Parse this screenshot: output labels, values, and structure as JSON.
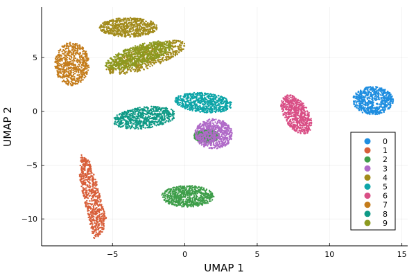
{
  "chart_data": {
    "type": "scatter",
    "title": "",
    "xlabel": "UMAP 1",
    "ylabel": "UMAP 2",
    "xlim": [
      -9.9,
      15.4
    ],
    "ylim": [
      -12.5,
      9.7
    ],
    "xticks": [
      -5,
      0,
      5,
      10,
      15
    ],
    "yticks": [
      -10,
      -5,
      0,
      5
    ],
    "xtick_labels": [
      "−5",
      "0",
      "5",
      "10",
      "15"
    ],
    "ytick_labels": [
      "−10",
      "−5",
      "0",
      "5"
    ],
    "grid": true,
    "legend_position": "bottom-right",
    "series": [
      {
        "name": "0",
        "color": "#1f8ee0",
        "clusters": [
          {
            "shape": "ellipse",
            "cx": 13.0,
            "cy": 1.0,
            "rx": 1.4,
            "ry": 1.3
          }
        ]
      },
      {
        "name": "1",
        "color": "#d85f3a",
        "clusters": [
          {
            "shape": "polygon",
            "points": [
              [
                -7.2,
                -4.0
              ],
              [
                -6.6,
                -4.6
              ],
              [
                -6.1,
                -6.5
              ],
              [
                -5.7,
                -8.8
              ],
              [
                -5.4,
                -10.0
              ],
              [
                -5.7,
                -11.4
              ],
              [
                -6.3,
                -11.9
              ],
              [
                -6.6,
                -10.2
              ],
              [
                -7.0,
                -8.0
              ],
              [
                -7.3,
                -6.0
              ]
            ]
          }
        ]
      },
      {
        "name": "2",
        "color": "#3e9e4a",
        "clusters": [
          {
            "shape": "ellipse",
            "cx": 0.2,
            "cy": -7.9,
            "rx": 1.8,
            "ry": 1.0
          },
          {
            "shape": "ellipse",
            "cx": 1.5,
            "cy": -2.3,
            "rx": 0.9,
            "ry": 0.6
          }
        ]
      },
      {
        "name": "3",
        "color": "#b06ac8",
        "clusters": [
          {
            "shape": "ellipse",
            "cx": 2.0,
            "cy": -2.1,
            "rx": 1.3,
            "ry": 1.4
          }
        ]
      },
      {
        "name": "4",
        "color": "#a28b1b",
        "clusters": [
          {
            "shape": "ellipse",
            "cx": -3.9,
            "cy": 7.8,
            "rx": 2.0,
            "ry": 0.9
          },
          {
            "shape": "ellipse",
            "cx": -2.7,
            "cy": 5.0,
            "rx": 3.0,
            "ry": 1.0,
            "angle": 26
          }
        ]
      },
      {
        "name": "5",
        "color": "#0ea5a8",
        "clusters": [
          {
            "shape": "ellipse",
            "cx": 1.3,
            "cy": 0.8,
            "rx": 2.0,
            "ry": 0.9,
            "angle": -8
          }
        ]
      },
      {
        "name": "6",
        "color": "#d94f86",
        "clusters": [
          {
            "shape": "ellipse",
            "cx": 7.7,
            "cy": -0.3,
            "rx": 0.9,
            "ry": 1.9,
            "angle": 20
          }
        ]
      },
      {
        "name": "7",
        "color": "#c47c1b",
        "clusters": [
          {
            "shape": "ellipse",
            "cx": -7.8,
            "cy": 4.4,
            "rx": 1.2,
            "ry": 2.0
          }
        ]
      },
      {
        "name": "8",
        "color": "#0f9a86",
        "clusters": [
          {
            "shape": "ellipse",
            "cx": -2.8,
            "cy": -0.6,
            "rx": 2.2,
            "ry": 1.0,
            "angle": 10
          }
        ]
      },
      {
        "name": "9",
        "color": "#8c9a20",
        "clusters": [
          {
            "shape": "ellipse",
            "cx": -3.2,
            "cy": 5.2,
            "rx": 2.5,
            "ry": 0.9,
            "angle": 25
          }
        ]
      }
    ]
  }
}
